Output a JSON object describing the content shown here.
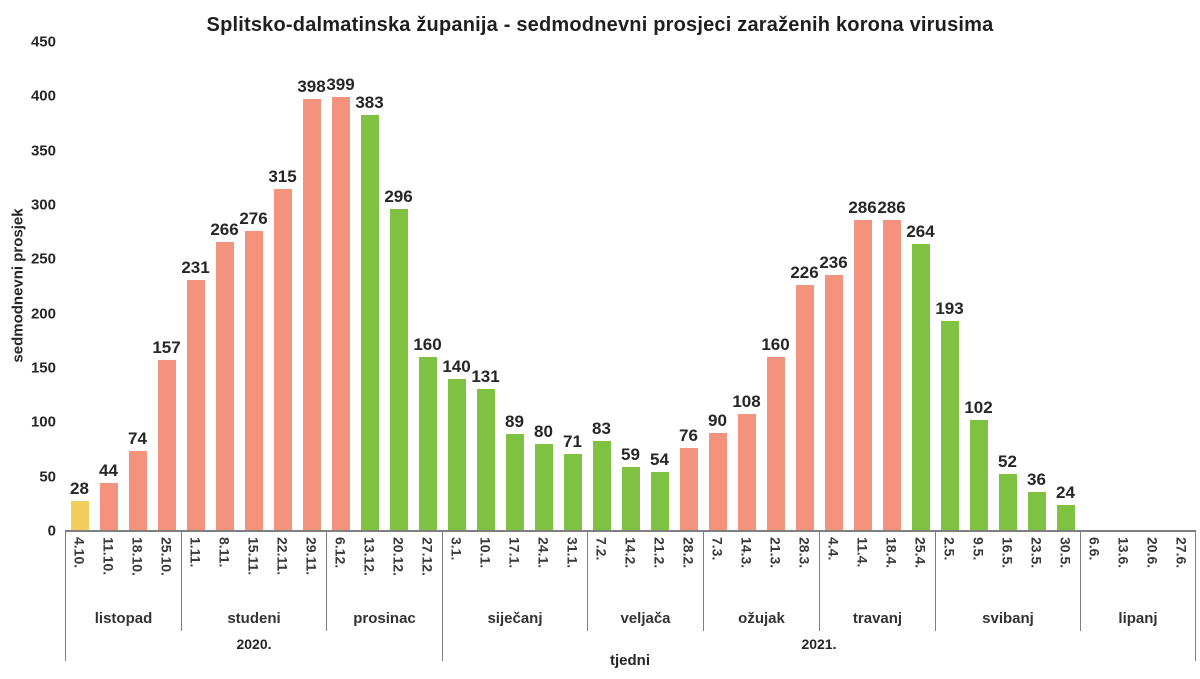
{
  "chart_data": {
    "type": "bar",
    "title": "Splitsko-dalmatinska županija - sedmodnevni prosjeci zaraženih korona virusima",
    "ylabel": "sedmodnevni prosjek",
    "xlabel": "tjedni",
    "ylim": [
      0,
      450
    ],
    "yticks": [
      0,
      50,
      100,
      150,
      200,
      250,
      300,
      350,
      400,
      450
    ],
    "grid": false,
    "legend": "none",
    "bar_colors": {
      "yellow": "#F2CF5B",
      "salmon": "#F3937E",
      "green": "#7FC241"
    },
    "points": [
      {
        "date": "4.10.",
        "value": 28,
        "color": "yellow"
      },
      {
        "date": "11.10.",
        "value": 44,
        "color": "salmon"
      },
      {
        "date": "18.10.",
        "value": 74,
        "color": "salmon"
      },
      {
        "date": "25.10.",
        "value": 157,
        "color": "salmon"
      },
      {
        "date": "1.11.",
        "value": 231,
        "color": "salmon"
      },
      {
        "date": "8.11.",
        "value": 266,
        "color": "salmon"
      },
      {
        "date": "15.11.",
        "value": 276,
        "color": "salmon"
      },
      {
        "date": "22.11.",
        "value": 315,
        "color": "salmon"
      },
      {
        "date": "29.11.",
        "value": 398,
        "color": "salmon"
      },
      {
        "date": "6.12.",
        "value": 399,
        "color": "salmon"
      },
      {
        "date": "13.12.",
        "value": 383,
        "color": "green"
      },
      {
        "date": "20.12.",
        "value": 296,
        "color": "green"
      },
      {
        "date": "27.12.",
        "value": 160,
        "color": "green"
      },
      {
        "date": "3.1.",
        "value": 140,
        "color": "green"
      },
      {
        "date": "10.1.",
        "value": 131,
        "color": "green"
      },
      {
        "date": "17.1.",
        "value": 89,
        "color": "green"
      },
      {
        "date": "24.1.",
        "value": 80,
        "color": "green"
      },
      {
        "date": "31.1.",
        "value": 71,
        "color": "green"
      },
      {
        "date": "7.2.",
        "value": 83,
        "color": "green"
      },
      {
        "date": "14.2.",
        "value": 59,
        "color": "green"
      },
      {
        "date": "21.2.",
        "value": 54,
        "color": "green"
      },
      {
        "date": "28.2.",
        "value": 76,
        "color": "salmon"
      },
      {
        "date": "7.3.",
        "value": 90,
        "color": "salmon"
      },
      {
        "date": "14.3.",
        "value": 108,
        "color": "salmon"
      },
      {
        "date": "21.3.",
        "value": 160,
        "color": "salmon"
      },
      {
        "date": "28.3.",
        "value": 226,
        "color": "salmon"
      },
      {
        "date": "4.4.",
        "value": 236,
        "color": "salmon"
      },
      {
        "date": "11.4.",
        "value": 286,
        "color": "salmon"
      },
      {
        "date": "18.4.",
        "value": 286,
        "color": "salmon"
      },
      {
        "date": "25.4.",
        "value": 264,
        "color": "green"
      },
      {
        "date": "2.5.",
        "value": 193,
        "color": "green"
      },
      {
        "date": "9.5.",
        "value": 102,
        "color": "green"
      },
      {
        "date": "16.5.",
        "value": 52,
        "color": "green"
      },
      {
        "date": "23.5.",
        "value": 36,
        "color": "green"
      },
      {
        "date": "30.5.",
        "value": 24,
        "color": "green"
      },
      {
        "date": "6.6.",
        "value": null
      },
      {
        "date": "13.6.",
        "value": null
      },
      {
        "date": "20.6.",
        "value": null
      },
      {
        "date": "27.6.",
        "value": null
      }
    ],
    "month_groups": [
      {
        "label": "listopad",
        "weeks": 4
      },
      {
        "label": "studeni",
        "weeks": 5
      },
      {
        "label": "prosinac",
        "weeks": 4
      },
      {
        "label": "siječanj",
        "weeks": 5
      },
      {
        "label": "veljača",
        "weeks": 4
      },
      {
        "label": "ožujak",
        "weeks": 4
      },
      {
        "label": "travanj",
        "weeks": 4
      },
      {
        "label": "svibanj",
        "weeks": 5
      },
      {
        "label": "lipanj",
        "weeks": 4
      }
    ],
    "year_groups": [
      {
        "label": "2020.",
        "weeks": 13
      },
      {
        "label": "2021.",
        "weeks": 26
      }
    ]
  }
}
